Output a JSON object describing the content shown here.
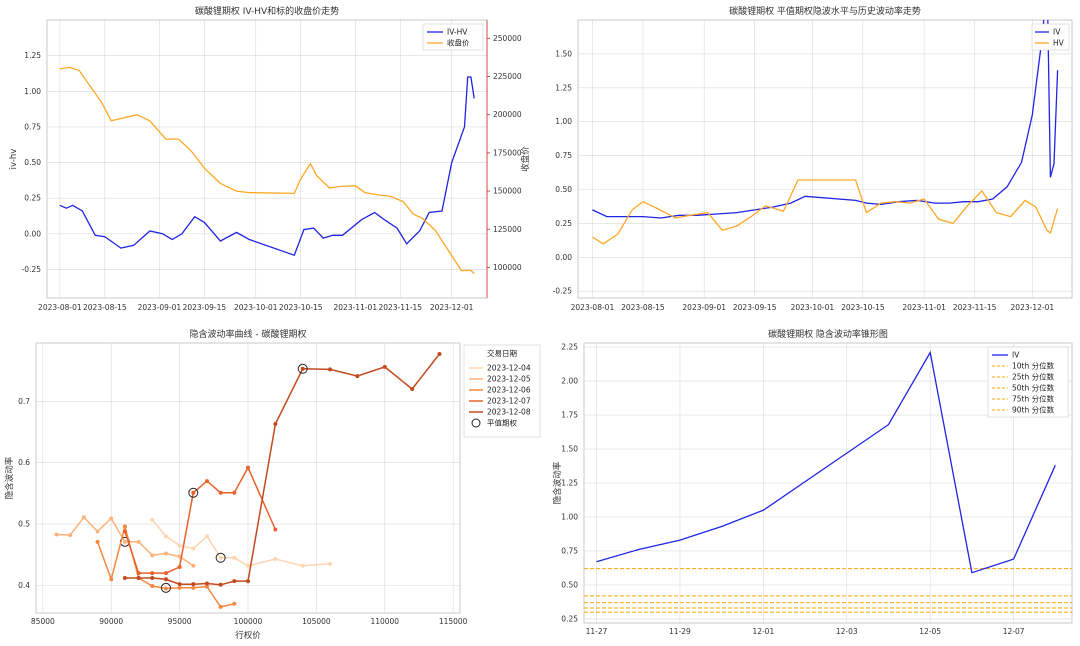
{
  "colors": {
    "blue": "#1f24e6",
    "orange": "#ffa726",
    "red_axis": "#d62728",
    "left_axis": "#1f77b4",
    "grid": "#d9d9d9",
    "frame": "#bdbdbd",
    "atm_marker": "#222222",
    "quantile": "#ffa500"
  },
  "chart_data": [
    {
      "type": "line",
      "title": "碳酸锂期权 IV-HV和标的收盘价走势",
      "xlabel": "",
      "ylabel": "iv-hv",
      "ylabel_right": "收盘价",
      "x_ticks": [
        "2023-08-01",
        "2023-08-15",
        "2023-09-01",
        "2023-09-15",
        "2023-10-01",
        "2023-10-15",
        "2023-11-01",
        "2023-11-15",
        "2023-12-01"
      ],
      "y_ticks": [
        "1.25",
        "1.00",
        "0.75",
        "0.50",
        "0.25",
        "0.00",
        "-0.25"
      ],
      "y2_ticks": [
        "250000",
        "225000",
        "200000",
        "175000",
        "150000",
        "125000",
        "100000"
      ],
      "xlim": [
        "2023-07-28",
        "2023-12-12"
      ],
      "ylim": [
        -0.45,
        1.5
      ],
      "y2lim": [
        80000,
        262000
      ],
      "grid": true,
      "legend_position": "top-right",
      "series": [
        {
          "name": "IV-HV",
          "axis": "left",
          "color": "#1f24e6",
          "x": [
            "2023-08-01",
            "2023-08-03",
            "2023-08-05",
            "2023-08-08",
            "2023-08-12",
            "2023-08-15",
            "2023-08-20",
            "2023-08-24",
            "2023-08-29",
            "2023-09-02",
            "2023-09-05",
            "2023-09-08",
            "2023-09-12",
            "2023-09-15",
            "2023-09-20",
            "2023-09-25",
            "2023-09-29",
            "2023-10-13",
            "2023-10-16",
            "2023-10-19",
            "2023-10-22",
            "2023-10-25",
            "2023-10-28",
            "2023-11-03",
            "2023-11-07",
            "2023-11-10",
            "2023-11-14",
            "2023-11-17",
            "2023-11-21",
            "2023-11-24",
            "2023-11-28",
            "2023-12-01",
            "2023-12-05",
            "2023-12-06",
            "2023-12-07",
            "2023-12-08"
          ],
          "y": [
            0.2,
            0.18,
            0.2,
            0.16,
            -0.01,
            -0.02,
            -0.1,
            -0.08,
            0.02,
            0.0,
            -0.04,
            0.0,
            0.12,
            0.08,
            -0.05,
            0.01,
            -0.04,
            -0.15,
            0.03,
            0.04,
            -0.03,
            -0.01,
            -0.01,
            0.1,
            0.15,
            0.1,
            0.04,
            -0.07,
            0.02,
            0.15,
            0.16,
            0.5,
            0.75,
            1.1,
            1.1,
            0.95
          ]
        },
        {
          "name": "收盘价",
          "axis": "right",
          "color": "#ffa726",
          "x": [
            "2023-08-01",
            "2023-08-04",
            "2023-08-07",
            "2023-08-10",
            "2023-08-14",
            "2023-08-17",
            "2023-08-21",
            "2023-08-25",
            "2023-08-29",
            "2023-09-03",
            "2023-09-07",
            "2023-09-11",
            "2023-09-15",
            "2023-09-20",
            "2023-09-25",
            "2023-09-29",
            "2023-10-13",
            "2023-10-15",
            "2023-10-18",
            "2023-10-20",
            "2023-10-24",
            "2023-10-27",
            "2023-11-01",
            "2023-11-04",
            "2023-11-08",
            "2023-11-12",
            "2023-11-16",
            "2023-11-19",
            "2023-11-22",
            "2023-11-26",
            "2023-11-30",
            "2023-12-04",
            "2023-12-07",
            "2023-12-08"
          ],
          "y": [
            230000,
            231000,
            229000,
            220000,
            208000,
            196000,
            198000,
            200000,
            196000,
            184000,
            184000,
            176000,
            165000,
            155000,
            150000,
            149000,
            148500,
            158000,
            168000,
            160000,
            152000,
            153000,
            153500,
            149000,
            147500,
            146500,
            143000,
            135000,
            132000,
            124000,
            111000,
            98000,
            98000,
            96000
          ]
        }
      ]
    },
    {
      "type": "line",
      "title": "碳酸锂期权 平值期权隐波水平与历史波动率走势",
      "xlabel": "",
      "ylabel": "",
      "x_ticks": [
        "2023-08-01",
        "2023-08-15",
        "2023-09-01",
        "2023-09-15",
        "2023-10-01",
        "2023-10-15",
        "2023-11-01",
        "2023-11-15",
        "2023-12-01"
      ],
      "y_ticks": [
        "1.50",
        "1.25",
        "1.00",
        "0.75",
        "0.50",
        "0.25",
        "0.00",
        "-0.25"
      ],
      "xlim": [
        "2023-07-28",
        "2023-12-12"
      ],
      "ylim": [
        -0.3,
        1.75
      ],
      "grid": true,
      "legend_position": "top-right",
      "series": [
        {
          "name": "IV",
          "color": "#1f24e6",
          "x": [
            "2023-08-01",
            "2023-08-05",
            "2023-08-10",
            "2023-08-15",
            "2023-08-20",
            "2023-08-25",
            "2023-08-30",
            "2023-09-05",
            "2023-09-10",
            "2023-09-15",
            "2023-09-20",
            "2023-09-25",
            "2023-09-29",
            "2023-10-13",
            "2023-10-16",
            "2023-10-20",
            "2023-10-25",
            "2023-10-30",
            "2023-11-04",
            "2023-11-08",
            "2023-11-12",
            "2023-11-16",
            "2023-11-20",
            "2023-11-24",
            "2023-11-28",
            "2023-12-01",
            "2023-12-04",
            "2023-12-05",
            "2023-12-06",
            "2023-12-07",
            "2023-12-08"
          ],
          "y": [
            0.35,
            0.3,
            0.3,
            0.3,
            0.29,
            0.31,
            0.31,
            0.32,
            0.33,
            0.35,
            0.37,
            0.4,
            0.45,
            0.42,
            0.4,
            0.39,
            0.41,
            0.42,
            0.4,
            0.4,
            0.41,
            0.41,
            0.43,
            0.52,
            0.7,
            1.05,
            1.68,
            2.21,
            0.59,
            0.69,
            1.38
          ]
        },
        {
          "name": "HV",
          "color": "#ffa726",
          "x": [
            "2023-08-01",
            "2023-08-04",
            "2023-08-08",
            "2023-08-12",
            "2023-08-15",
            "2023-08-19",
            "2023-08-24",
            "2023-08-28",
            "2023-09-02",
            "2023-09-06",
            "2023-09-10",
            "2023-09-14",
            "2023-09-18",
            "2023-09-23",
            "2023-09-27",
            "2023-10-13",
            "2023-10-16",
            "2023-10-20",
            "2023-10-24",
            "2023-10-28",
            "2023-11-01",
            "2023-11-05",
            "2023-11-09",
            "2023-11-13",
            "2023-11-17",
            "2023-11-21",
            "2023-11-25",
            "2023-11-29",
            "2023-12-02",
            "2023-12-05",
            "2023-12-06",
            "2023-12-08"
          ],
          "y": [
            0.15,
            0.1,
            0.17,
            0.35,
            0.41,
            0.36,
            0.29,
            0.31,
            0.33,
            0.2,
            0.23,
            0.3,
            0.38,
            0.34,
            0.57,
            0.57,
            0.33,
            0.4,
            0.41,
            0.4,
            0.43,
            0.28,
            0.25,
            0.38,
            0.49,
            0.33,
            0.3,
            0.42,
            0.37,
            0.2,
            0.18,
            0.36
          ]
        }
      ]
    },
    {
      "type": "line",
      "title": "隐含波动率曲线 - 碳酸锂期权",
      "xlabel": "行权价",
      "ylabel": "隐含波动率",
      "x_ticks": [
        "85000",
        "90000",
        "95000",
        "100000",
        "105000",
        "110000",
        "115000"
      ],
      "y_ticks": [
        "0.7",
        "0.6",
        "0.5",
        "0.4"
      ],
      "xlim": [
        84500,
        115500
      ],
      "ylim": [
        0.355,
        0.795
      ],
      "grid": true,
      "legend_title": "交易日期",
      "legend_position": "top-right",
      "atm_label": "平值期权",
      "series": [
        {
          "name": "2023-12-04",
          "color": "#fdd6b0",
          "x": [
            93000,
            94000,
            95000,
            96000,
            97000,
            98000,
            99000,
            100000,
            102000,
            104000,
            106000
          ],
          "y": [
            0.507,
            0.48,
            0.465,
            0.46,
            0.48,
            0.445,
            0.445,
            0.432,
            0.443,
            0.432,
            0.435
          ],
          "atm": [
            98000,
            0.445
          ]
        },
        {
          "name": "2023-12-05",
          "color": "#fdb27a",
          "x": [
            86000,
            87000,
            88000,
            89000,
            90000,
            91000,
            92000,
            93000,
            94000,
            95000,
            96000
          ],
          "y": [
            0.483,
            0.482,
            0.511,
            0.488,
            0.509,
            0.471,
            0.471,
            0.449,
            0.452,
            0.447,
            0.432
          ],
          "atm": [
            91000,
            0.471
          ]
        },
        {
          "name": "2023-12-06",
          "color": "#f7893f",
          "x": [
            89000,
            90000,
            91000,
            92000,
            93000,
            94000,
            95000,
            96000,
            97000,
            98000,
            99000
          ],
          "y": [
            0.471,
            0.41,
            0.496,
            0.412,
            0.399,
            0.395,
            0.396,
            0.396,
            0.398,
            0.365,
            0.37
          ],
          "atm": [
            94000,
            0.396
          ]
        },
        {
          "name": "2023-12-07",
          "color": "#e8622c",
          "x": [
            91000,
            92000,
            93000,
            94000,
            95000,
            96000,
            97000,
            98000,
            99000,
            100000,
            102000
          ],
          "y": [
            0.488,
            0.42,
            0.42,
            0.42,
            0.43,
            0.551,
            0.57,
            0.551,
            0.551,
            0.592,
            0.491
          ],
          "atm": [
            96000,
            0.551
          ]
        },
        {
          "name": "2023-12-08",
          "color": "#c24a1e",
          "x": [
            91000,
            92000,
            93000,
            94000,
            95000,
            96000,
            97000,
            98000,
            99000,
            100000,
            102000,
            104000,
            106000,
            108000,
            110000,
            112000,
            114000
          ],
          "y": [
            0.412,
            0.412,
            0.412,
            0.41,
            0.402,
            0.402,
            0.403,
            0.401,
            0.407,
            0.407,
            0.663,
            0.753,
            0.752,
            0.741,
            0.756,
            0.72,
            0.777
          ],
          "atm": [
            104000,
            0.753
          ]
        }
      ]
    },
    {
      "type": "line",
      "title": "碳酸锂期权 隐含波动率锥形图",
      "xlabel": "",
      "ylabel": "隐含波动率",
      "x_ticks": [
        "11-27",
        "11-29",
        "12-01",
        "12-03",
        "12-05",
        "12-07"
      ],
      "y_ticks": [
        "2.25",
        "2.00",
        "1.75",
        "1.50",
        "1.25",
        "1.00",
        "0.75",
        "0.50",
        "0.25"
      ],
      "xlim": [
        "2023-11-26.7",
        "2023-12-08.4"
      ],
      "ylim": [
        0.22,
        2.28
      ],
      "grid": true,
      "legend_position": "top-right",
      "series": [
        {
          "name": "IV",
          "color": "#1f24e6",
          "x": [
            "11-27",
            "11-28",
            "11-29",
            "11-30",
            "12-01",
            "12-04",
            "12-05",
            "12-06",
            "12-07",
            "12-08"
          ],
          "x_days": [
            0,
            1,
            2,
            3,
            4,
            7,
            8,
            9,
            10,
            11
          ],
          "y": [
            0.67,
            0.76,
            0.83,
            0.93,
            1.05,
            1.68,
            2.21,
            0.59,
            0.69,
            1.38
          ]
        }
      ],
      "quantiles": [
        {
          "name": "10th 分位数",
          "value": 0.3
        },
        {
          "name": "25th 分位数",
          "value": 0.33
        },
        {
          "name": "50th 分位数",
          "value": 0.37
        },
        {
          "name": "75th 分位数",
          "value": 0.42
        },
        {
          "name": "90th 分位数",
          "value": 0.62
        }
      ]
    }
  ]
}
